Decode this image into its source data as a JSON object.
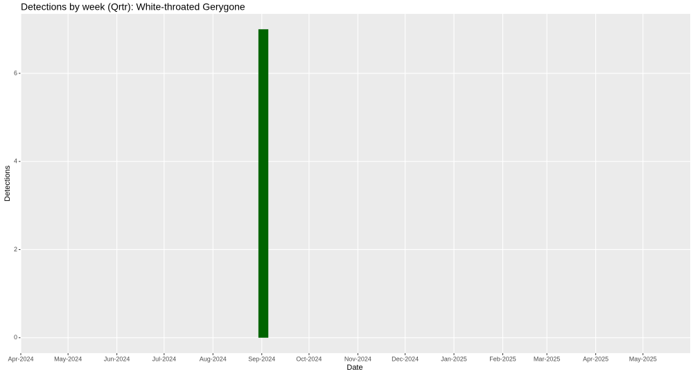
{
  "chart_data": {
    "type": "bar",
    "title": "Detections by week (Qrtr): White-throated Gerygone",
    "x_label": "Date",
    "y_label": "Detections",
    "x": [
      "2024-09-02"
    ],
    "values": [
      7
    ],
    "color": "#006400",
    "xlim": [
      "2024-04-01",
      "2025-05-31"
    ],
    "xticks": [
      {
        "value": "2024-04-01",
        "label": "Apr-2024"
      },
      {
        "value": "2024-05-01",
        "label": "May-2024"
      },
      {
        "value": "2024-06-01",
        "label": "Jun-2024"
      },
      {
        "value": "2024-07-01",
        "label": "Jul-2024"
      },
      {
        "value": "2024-08-01",
        "label": "Aug-2024"
      },
      {
        "value": "2024-09-01",
        "label": "Sep-2024"
      },
      {
        "value": "2024-10-01",
        "label": "Oct-2024"
      },
      {
        "value": "2024-11-01",
        "label": "Nov-2024"
      },
      {
        "value": "2024-12-01",
        "label": "Dec-2024"
      },
      {
        "value": "2025-01-01",
        "label": "Jan-2025"
      },
      {
        "value": "2025-02-01",
        "label": "Feb-2025"
      },
      {
        "value": "2025-03-01",
        "label": "Mar-2025"
      },
      {
        "value": "2025-04-01",
        "label": "Apr-2025"
      },
      {
        "value": "2025-05-01",
        "label": "May-2025"
      }
    ],
    "ylim": [
      -0.35,
      7.35
    ],
    "yticks": [
      0,
      2,
      4,
      6
    ],
    "grid": true
  }
}
